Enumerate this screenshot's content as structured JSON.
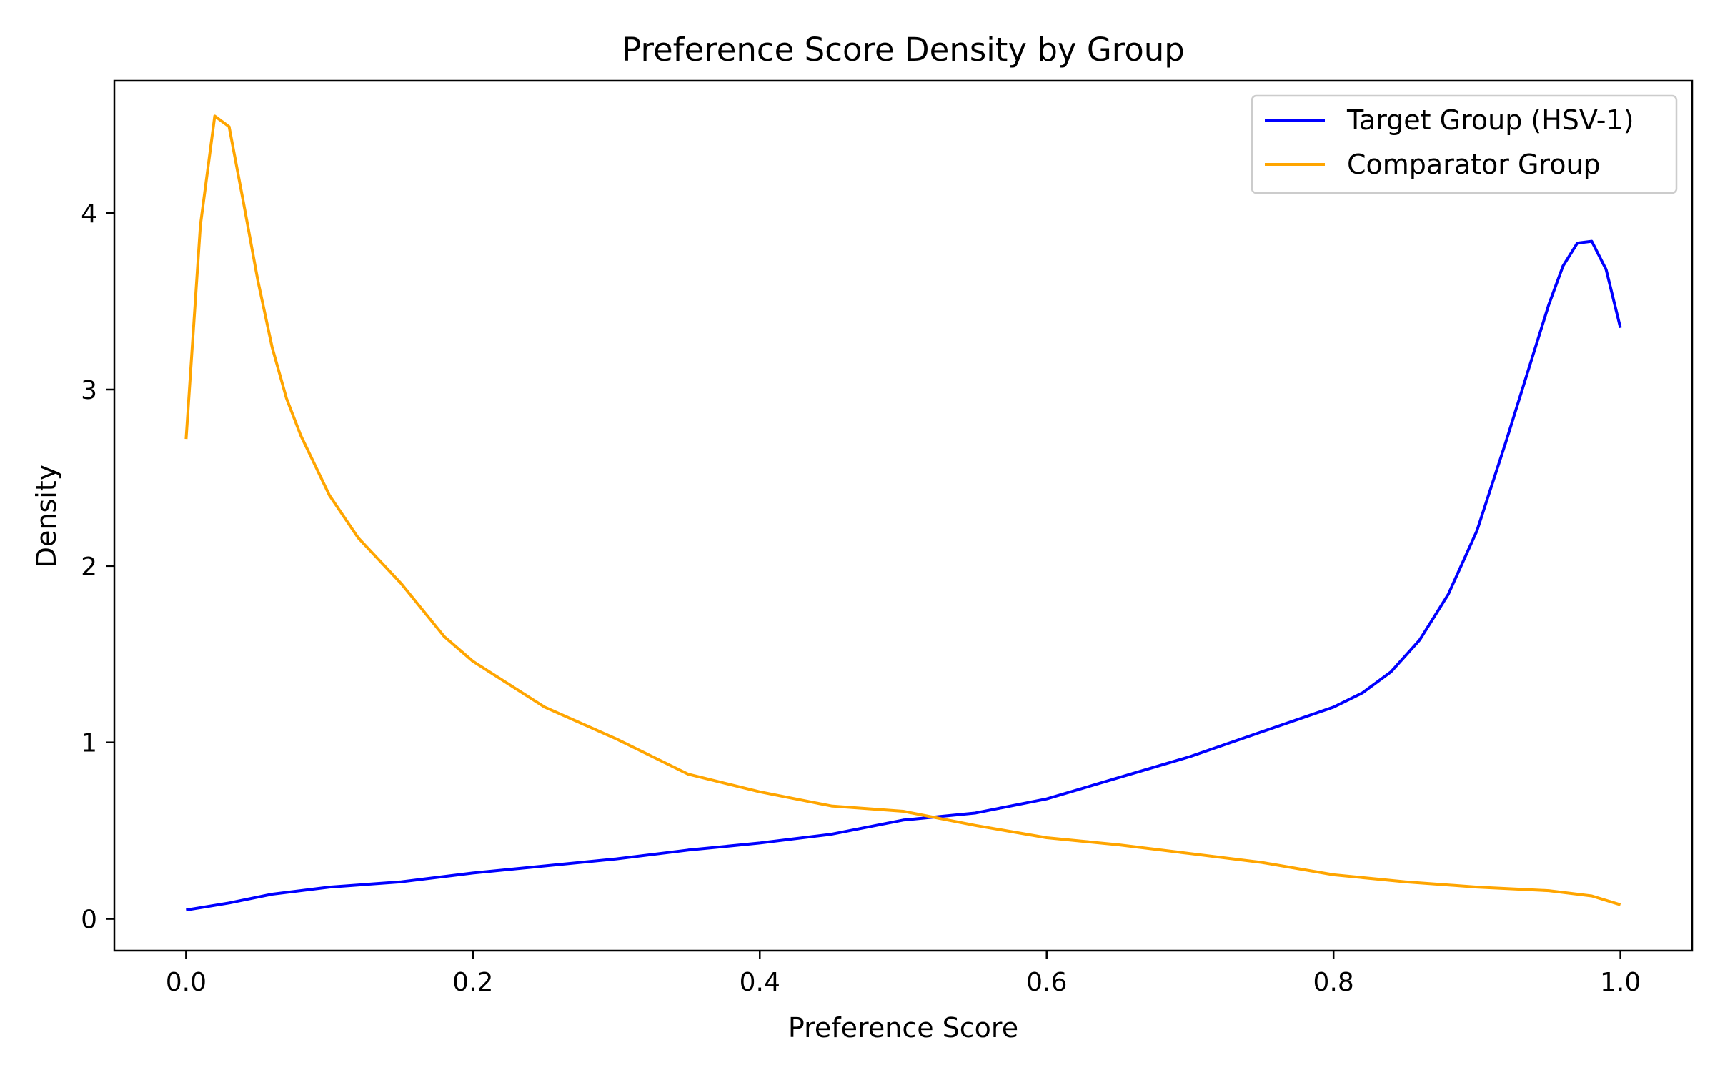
{
  "chart_data": {
    "type": "line",
    "title": "Preference Score Density by Group",
    "xlabel": "Preference Score",
    "ylabel": "Density",
    "xlim": [
      -0.05,
      1.05
    ],
    "ylim": [
      -0.18,
      4.75
    ],
    "xticks": [
      0.0,
      0.2,
      0.4,
      0.6,
      0.8,
      1.0
    ],
    "xtick_labels": [
      "0.0",
      "0.2",
      "0.4",
      "0.6",
      "0.8",
      "1.0"
    ],
    "yticks": [
      0,
      1,
      2,
      3,
      4
    ],
    "ytick_labels": [
      "0",
      "1",
      "2",
      "3",
      "4"
    ],
    "grid": false,
    "legend_position": "top-right",
    "series": [
      {
        "name": "Target Group (HSV-1)",
        "color": "#0000ff",
        "x": [
          0.0,
          0.03,
          0.06,
          0.1,
          0.15,
          0.2,
          0.25,
          0.3,
          0.35,
          0.4,
          0.45,
          0.5,
          0.55,
          0.6,
          0.65,
          0.7,
          0.75,
          0.8,
          0.82,
          0.84,
          0.86,
          0.88,
          0.9,
          0.92,
          0.94,
          0.95,
          0.96,
          0.97,
          0.98,
          0.99,
          1.0
        ],
        "y": [
          0.05,
          0.09,
          0.14,
          0.18,
          0.21,
          0.26,
          0.3,
          0.34,
          0.39,
          0.43,
          0.48,
          0.56,
          0.6,
          0.68,
          0.8,
          0.92,
          1.06,
          1.2,
          1.28,
          1.4,
          1.58,
          1.84,
          2.2,
          2.7,
          3.22,
          3.48,
          3.7,
          3.83,
          3.84,
          3.68,
          3.35
        ]
      },
      {
        "name": "Comparator Group",
        "color": "#ffa500",
        "x": [
          0.0,
          0.01,
          0.02,
          0.03,
          0.04,
          0.05,
          0.06,
          0.07,
          0.08,
          0.1,
          0.12,
          0.15,
          0.18,
          0.2,
          0.25,
          0.3,
          0.35,
          0.4,
          0.45,
          0.5,
          0.55,
          0.6,
          0.65,
          0.7,
          0.75,
          0.8,
          0.85,
          0.9,
          0.95,
          0.98,
          1.0
        ],
        "y": [
          2.72,
          3.93,
          4.55,
          4.49,
          4.06,
          3.62,
          3.24,
          2.95,
          2.74,
          2.4,
          2.16,
          1.9,
          1.6,
          1.46,
          1.2,
          1.02,
          0.82,
          0.72,
          0.64,
          0.61,
          0.53,
          0.46,
          0.42,
          0.37,
          0.32,
          0.25,
          0.21,
          0.18,
          0.16,
          0.13,
          0.08
        ]
      }
    ]
  }
}
